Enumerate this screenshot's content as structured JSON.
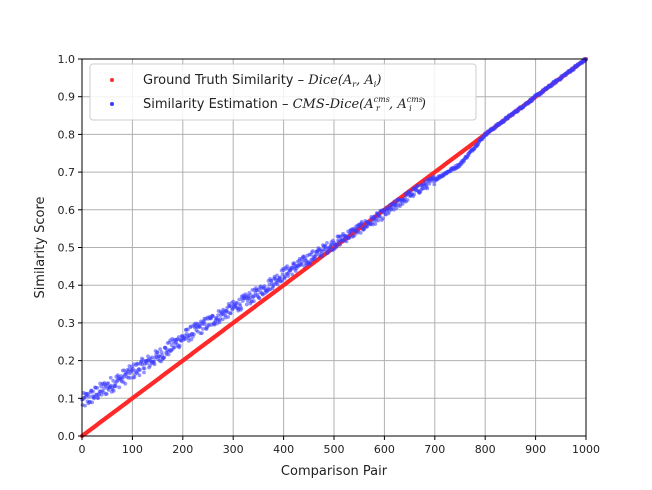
{
  "chart_data": {
    "type": "scatter",
    "title": "",
    "xlabel": "Comparison Pair",
    "ylabel": "Similarity Score",
    "xlim": [
      0,
      1000
    ],
    "ylim": [
      0.0,
      1.0
    ],
    "xticks": [
      "0",
      "100",
      "200",
      "300",
      "400",
      "500",
      "600",
      "700",
      "800",
      "900",
      "1000"
    ],
    "yticks": [
      "0.0",
      "0.1",
      "0.2",
      "0.3",
      "0.4",
      "0.5",
      "0.6",
      "0.7",
      "0.8",
      "0.9",
      "1.0"
    ],
    "grid": true,
    "legend_position": "top-left",
    "series": [
      {
        "name": "Ground Truth Similarity – Dice(A_r, A_i)",
        "legend_prefix": "Ground Truth Similarity – ",
        "legend_math": {
          "fn": "Dice",
          "args": [
            {
              "base": "A",
              "sub": "r"
            },
            {
              "base": "A",
              "sub": "i"
            }
          ]
        },
        "color": "#ff2a2a",
        "marker": "dot",
        "x_range": [
          0,
          1000
        ],
        "count": 1000,
        "relation": "y = x / 1000"
      },
      {
        "name": "Similarity Estimation – CMS-Dice(A_r^cms, A_i^cms)",
        "legend_prefix": "Similarity Estimation – ",
        "legend_math": {
          "fn": "CMS-Dice",
          "args": [
            {
              "base": "A",
              "sub": "r",
              "sup": "cms"
            },
            {
              "base": "A",
              "sub": "i",
              "sup": "cms"
            }
          ]
        },
        "color": "#3a3aff",
        "marker": "dot",
        "x": [
          0,
          50,
          100,
          150,
          200,
          250,
          300,
          350,
          400,
          450,
          500,
          550,
          600,
          650,
          700,
          750,
          800,
          850,
          900,
          950,
          1000
        ],
        "y": [
          0.09,
          0.13,
          0.17,
          0.21,
          0.26,
          0.3,
          0.34,
          0.38,
          0.43,
          0.47,
          0.51,
          0.55,
          0.59,
          0.64,
          0.68,
          0.72,
          0.8,
          0.85,
          0.9,
          0.95,
          1.0
        ]
      }
    ]
  }
}
